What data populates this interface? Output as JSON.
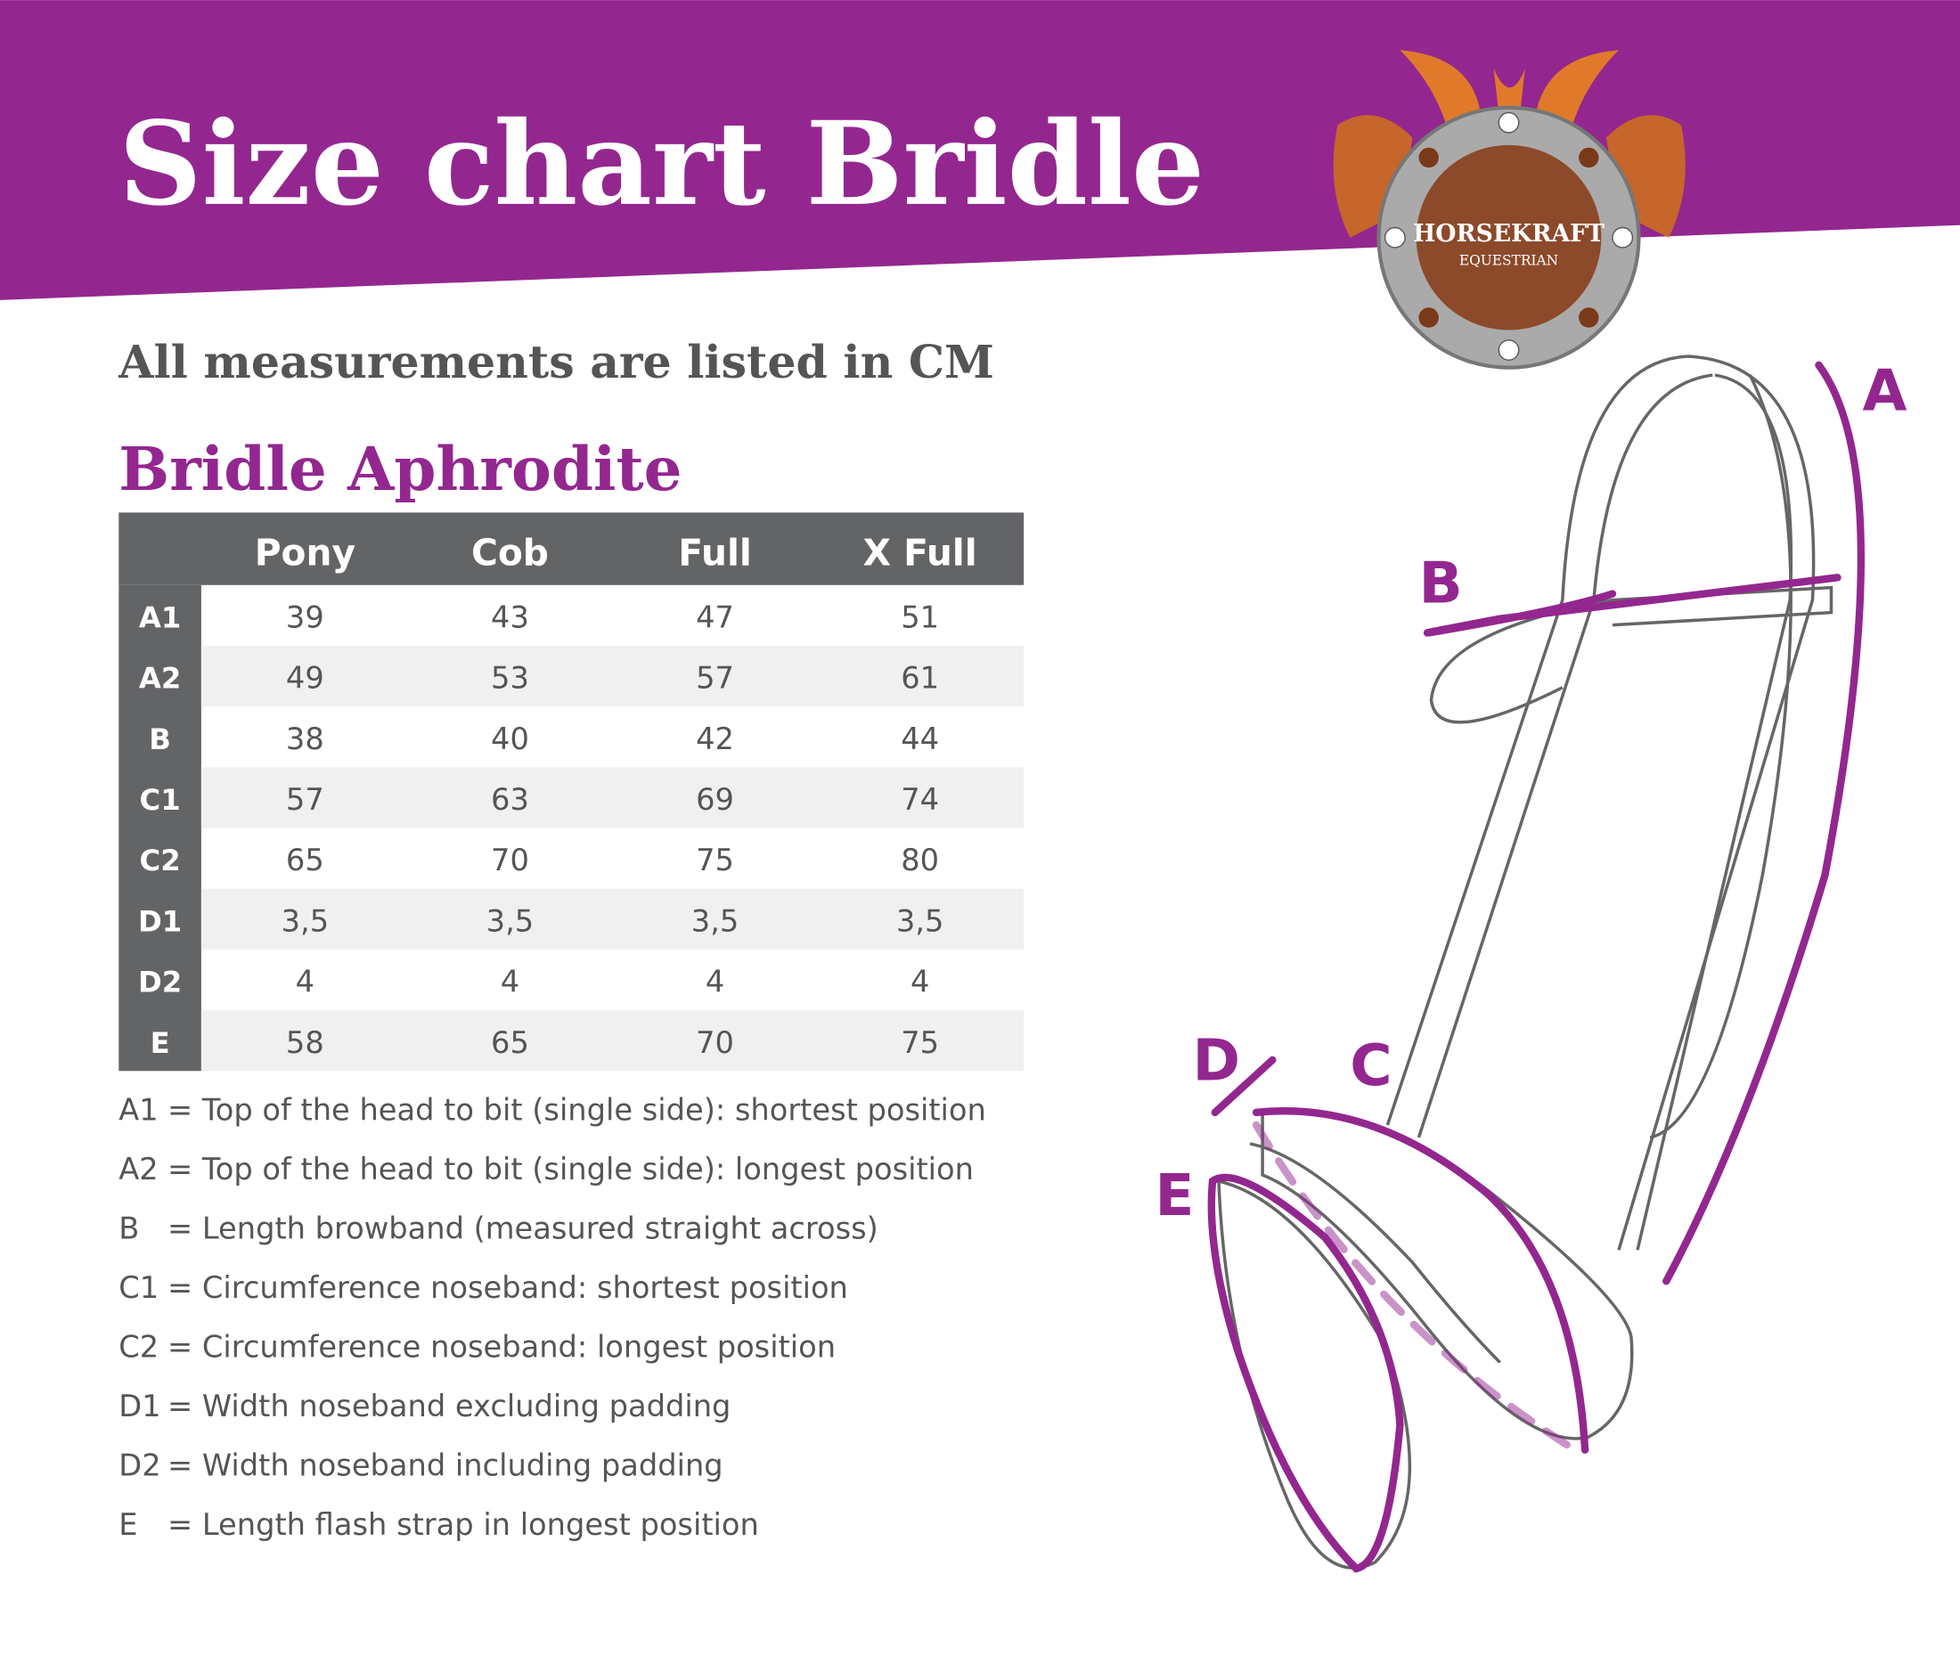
{
  "header": {
    "title": "Size chart Bridle",
    "logo_name": "HORSEKRAFT",
    "logo_sub": "EQUESTRIAN"
  },
  "subtitle": "All measurements are listed in CM",
  "product": "Bridle Aphrodite",
  "table": {
    "columns": [
      "Pony",
      "Cob",
      "Full",
      "X Full"
    ],
    "rows": [
      {
        "label": "A1",
        "cells": [
          "39",
          "43",
          "47",
          "51"
        ]
      },
      {
        "label": "A2",
        "cells": [
          "49",
          "53",
          "57",
          "61"
        ]
      },
      {
        "label": "B",
        "cells": [
          "38",
          "40",
          "42",
          "44"
        ]
      },
      {
        "label": "C1",
        "cells": [
          "57",
          "63",
          "69",
          "74"
        ]
      },
      {
        "label": "C2",
        "cells": [
          "65",
          "70",
          "75",
          "80"
        ]
      },
      {
        "label": "D1",
        "cells": [
          "3,5",
          "3,5",
          "3,5",
          "3,5"
        ]
      },
      {
        "label": "D2",
        "cells": [
          "4",
          "4",
          "4",
          "4"
        ]
      },
      {
        "label": "E",
        "cells": [
          "58",
          "65",
          "70",
          "75"
        ]
      }
    ]
  },
  "legend": [
    {
      "key": "A1",
      "text": "= Top of the head to bit (single side): shortest position"
    },
    {
      "key": "A2",
      "text": "= Top of the head to bit (single side): longest position"
    },
    {
      "key": "B",
      "text": "= Length browband (measured straight across)"
    },
    {
      "key": "C1",
      "text": "= Circumference noseband: shortest position"
    },
    {
      "key": "C2",
      "text": "= Circumference noseband: longest position"
    },
    {
      "key": "D1",
      "text": "= Width noseband excluding padding"
    },
    {
      "key": "D2",
      "text": "= Width noseband including padding"
    },
    {
      "key": "E",
      "text": "= Length flash strap in longest position"
    }
  ],
  "diagram": {
    "labels": [
      "A",
      "B",
      "C",
      "D",
      "E"
    ]
  }
}
